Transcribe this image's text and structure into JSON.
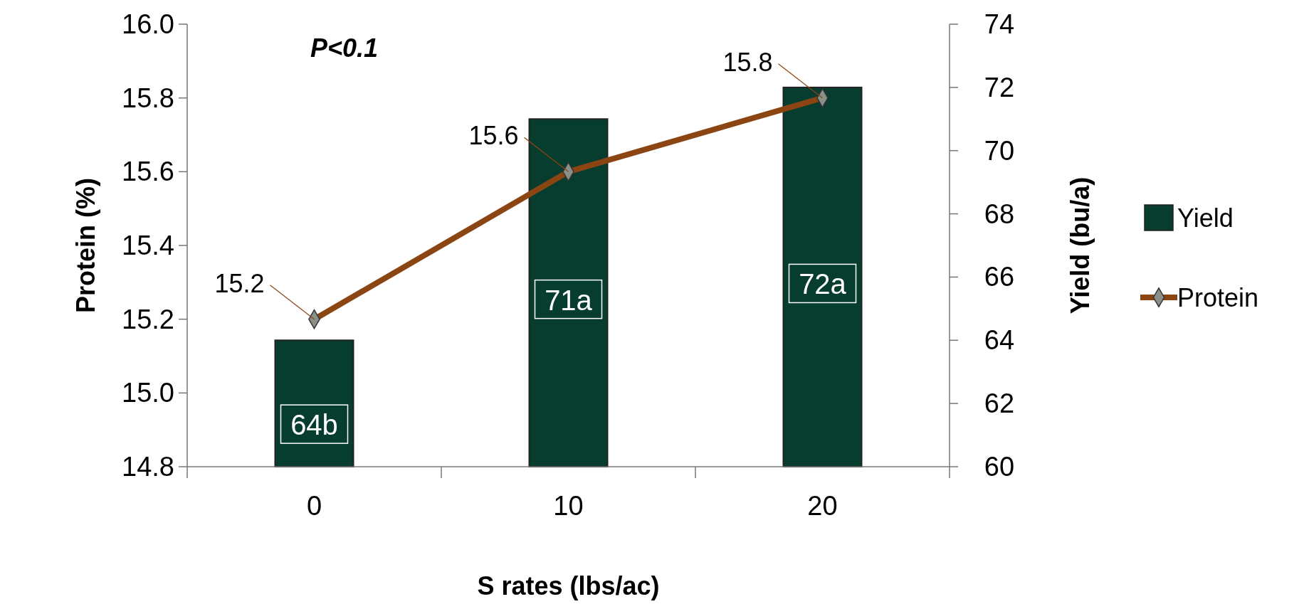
{
  "chart_data": {
    "type": "bar",
    "xlabel": "S rates (lbs/ac)",
    "ylabel": "Protein (%)",
    "y2label": "Yield (bu/a)",
    "categories": [
      "0",
      "10",
      "20"
    ],
    "series": [
      {
        "name": "Yield",
        "axis": "y2",
        "color": "#063d2e",
        "values": [
          64,
          71,
          72
        ],
        "value_labels": [
          "64b",
          "71a",
          "72a"
        ]
      },
      {
        "name": "Protein",
        "type": "line",
        "color": "#8b4513",
        "values": [
          15.2,
          15.6,
          15.8
        ],
        "value_labels": [
          "15.2",
          "15.6",
          "15.8"
        ]
      }
    ],
    "ylim": [
      14.8,
      16.0
    ],
    "yticks": [
      14.8,
      {
        "value": 15,
        "label": "15.0"
      },
      15.2,
      15.4,
      15.6,
      15.8,
      {
        "value": 16,
        "label": "16.0"
      }
    ],
    "y2lim": [
      60,
      74
    ],
    "y2ticks": [
      60,
      62,
      64,
      66,
      68,
      70,
      72,
      74
    ],
    "marker": "diamond",
    "legend": "right",
    "annotations": [
      "P<0.1"
    ]
  }
}
